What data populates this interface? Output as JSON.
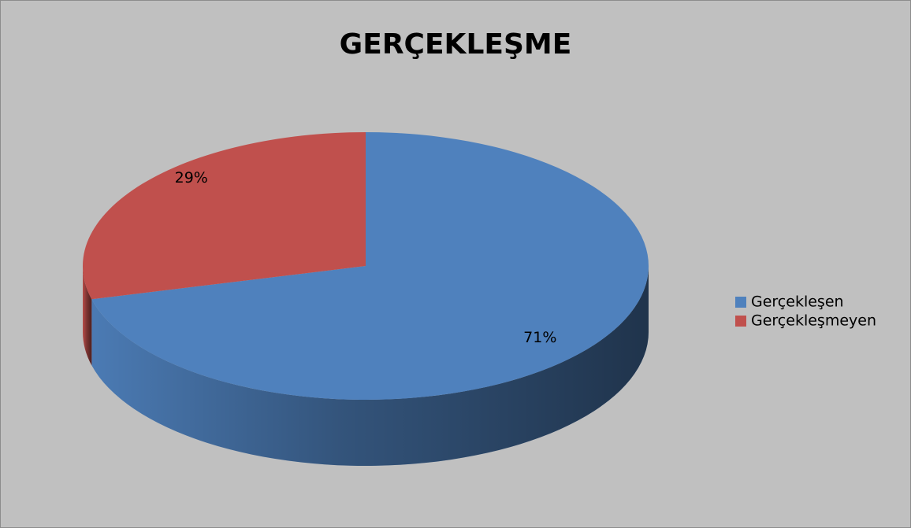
{
  "chart_data": {
    "type": "pie",
    "title": "GERÇEKLEŞME",
    "categories": [
      "Gerçekleşen",
      "Gerçekleşmeyen"
    ],
    "values": [
      71,
      29
    ],
    "value_labels": [
      "71%",
      "29%"
    ],
    "colors": [
      "#4f81bd",
      "#c0504d"
    ],
    "legend": "right"
  }
}
